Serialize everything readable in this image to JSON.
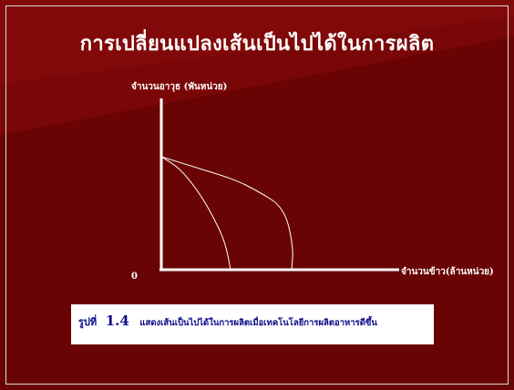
{
  "slide": {
    "title": "การเปลี่ยนแปลงเส้นเป็นไปได้ในการผลิต",
    "colors": {
      "background": "#6a0404",
      "foreground": "#ffffff",
      "caption_text": "#0a0a8a"
    }
  },
  "chart_data": {
    "type": "line",
    "title": "",
    "ylabel": "จำนวนอาวุธ (พันหน่วย)",
    "xlabel": "จำนวนข้าว(ล้านหน่วย)",
    "origin_label": "0",
    "axis_ticks": "none",
    "grid": false,
    "series": [
      {
        "description": "original production possibility curve",
        "points": [
          [
            0,
            1.0
          ],
          [
            0.2,
            0.9
          ],
          [
            0.4,
            0.7
          ],
          [
            0.55,
            0.5
          ],
          [
            0.7,
            0.25
          ],
          [
            0.76,
            0.0
          ]
        ]
      },
      {
        "description": "shifted production possibility curve after improved technology",
        "points": [
          [
            0,
            1.0
          ],
          [
            0.4,
            0.9
          ],
          [
            0.8,
            0.8
          ],
          [
            1.05,
            0.7
          ],
          [
            1.35,
            0.55
          ],
          [
            1.45,
            0.2
          ],
          [
            1.43,
            0.0
          ]
        ]
      }
    ]
  },
  "caption": {
    "figure_label": "รูปที่",
    "figure_number": "1.4",
    "text": "แสดงเส้นเป็นไปได้ในการผลิตเมื่อเทคโนโลยีการผลิตอาหารดีขึ้น"
  }
}
